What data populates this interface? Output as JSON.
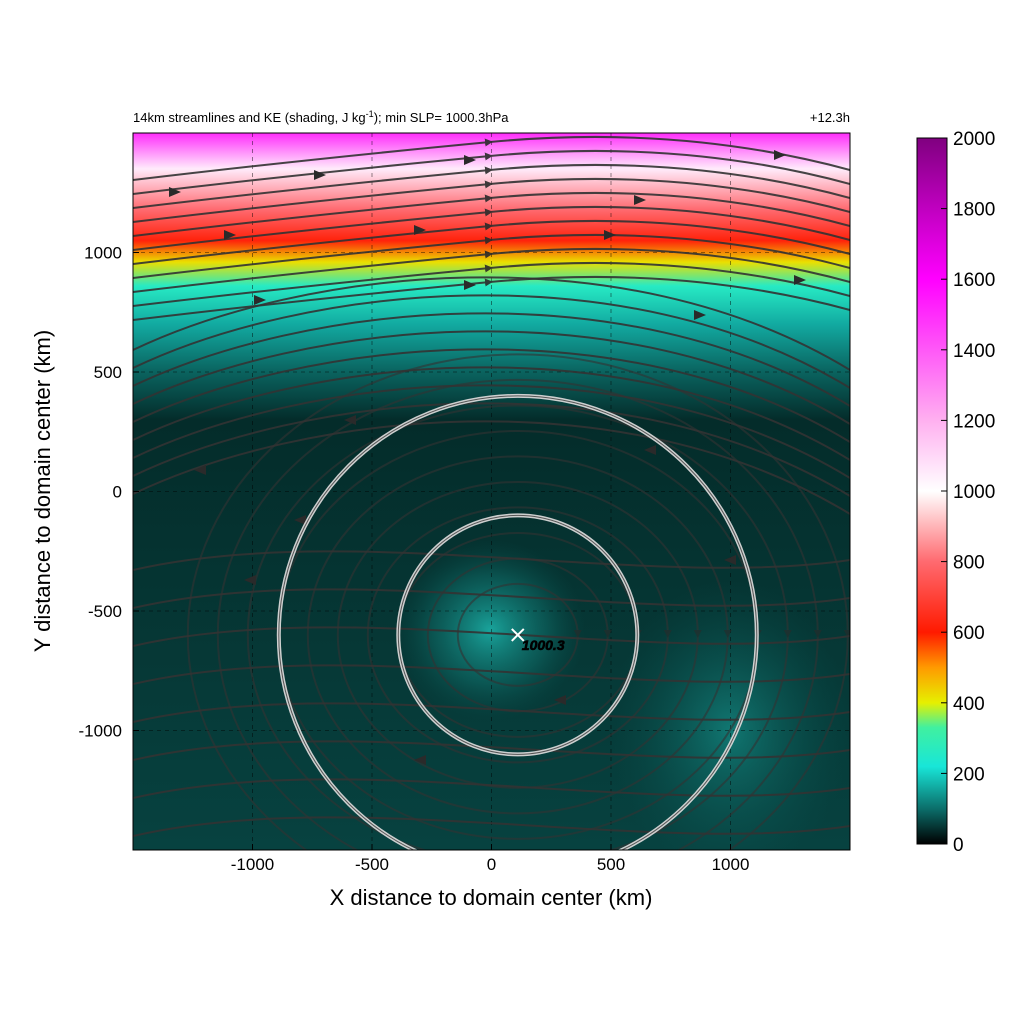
{
  "chart_data": {
    "type": "heatmap",
    "title": "14km streamlines and KE (shading, J kg",
    "title_sup": "-1",
    "title_tail": "); min SLP= 1000.3hPa",
    "time_label": "+12.3h",
    "xlabel": "X distance to domain center (km)",
    "ylabel": "Y distance to domain center (km)",
    "xlim": [
      -1500,
      1500
    ],
    "ylim": [
      -1500,
      1500
    ],
    "xticks": [
      -1000,
      -500,
      0,
      500,
      1000
    ],
    "yticks": [
      -1000,
      -500,
      0,
      500,
      1000
    ],
    "grid": "dashed",
    "colorbar": {
      "min": 0,
      "max": 2000,
      "ticks": [
        0,
        200,
        400,
        600,
        800,
        1000,
        1200,
        1400,
        1600,
        1800,
        2000
      ],
      "stops": [
        {
          "value": 0,
          "color": "#000000"
        },
        {
          "value": 100,
          "color": "#0b6e6a"
        },
        {
          "value": 220,
          "color": "#18e6d8"
        },
        {
          "value": 330,
          "color": "#40f0a0"
        },
        {
          "value": 400,
          "color": "#e6f000"
        },
        {
          "value": 500,
          "color": "#ff9a00"
        },
        {
          "value": 600,
          "color": "#ff1a00"
        },
        {
          "value": 800,
          "color": "#ff6a70"
        },
        {
          "value": 1000,
          "color": "#ffffff"
        },
        {
          "value": 1200,
          "color": "#ffb0f0"
        },
        {
          "value": 1600,
          "color": "#ff00ff"
        },
        {
          "value": 2000,
          "color": "#800080"
        }
      ]
    },
    "field_bands": [
      {
        "y": 1500,
        "ke": 1500
      },
      {
        "y": 1350,
        "ke": 1050
      },
      {
        "y": 1180,
        "ke": 800
      },
      {
        "y": 1050,
        "ke": 620
      },
      {
        "y": 960,
        "ke": 420
      },
      {
        "y": 860,
        "ke": 260
      },
      {
        "y": 700,
        "ke": 160
      },
      {
        "y": 500,
        "ke": 90
      },
      {
        "y": 300,
        "ke": 40
      },
      {
        "y": -1500,
        "ke": 60
      }
    ],
    "center": {
      "x": 110,
      "y": -600,
      "label": "1000.3"
    },
    "rings_km": [
      500,
      1000
    ],
    "ring_color": "#d8d8d8",
    "streamline_color": "#333333"
  }
}
